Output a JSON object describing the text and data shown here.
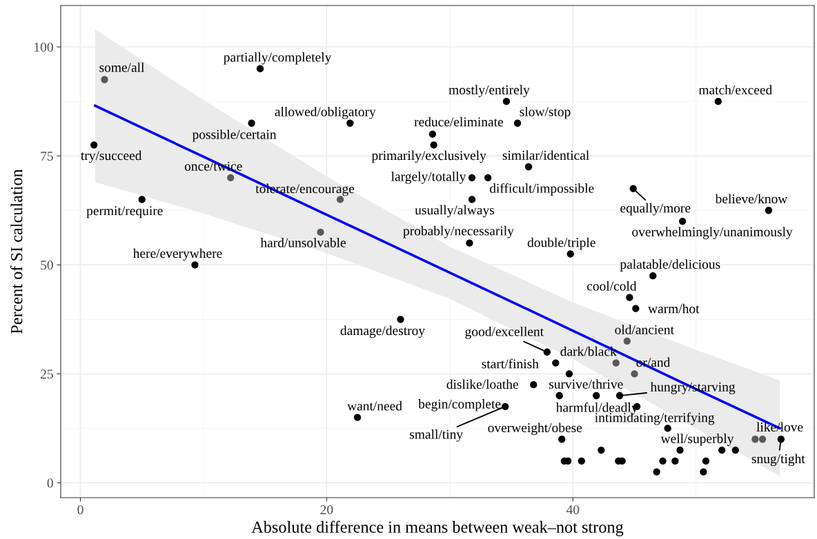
{
  "chart_data": {
    "type": "scatter",
    "xlabel": "Absolute difference in means between weak–not strong",
    "ylabel": "Percent of SI calculation",
    "xlim": [
      -1.6,
      59.6
    ],
    "ylim": [
      -3.4,
      109.5
    ],
    "xticks": [
      0,
      20,
      40
    ],
    "yticks": [
      0,
      25,
      50,
      75,
      100
    ],
    "grid": true,
    "series": [
      {
        "type": "scatter",
        "marker": "circle",
        "x": [
          1.96,
          14.6,
          13.9,
          21.9,
          1.1,
          12.2,
          5.0,
          21.1,
          19.5,
          9.3,
          34.6,
          35.5,
          28.6,
          28.7,
          36.4,
          31.8,
          33.1,
          31.8,
          31.6,
          39.8,
          44.9,
          51.8,
          55.9,
          48.9,
          46.5,
          44.6,
          45.1,
          26.0,
          44.4,
          37.9,
          43.5,
          38.6,
          45.0,
          39.7,
          36.8,
          38.9,
          41.9,
          43.8,
          45.2,
          34.5,
          47.7,
          39.1,
          48.7,
          54.8,
          55.4,
          56.9,
          42.3,
          52.1,
          53.2,
          39.3,
          39.6,
          40.7,
          43.7,
          44.0,
          47.3,
          48.3,
          50.8,
          46.8,
          50.6,
          22.5
        ],
        "values": [
          92.5,
          95,
          82.5,
          82.5,
          77.5,
          70,
          65,
          65,
          57.5,
          50,
          87.5,
          82.5,
          80,
          77.5,
          72.5,
          70,
          70,
          65,
          55,
          52.5,
          67.5,
          87.5,
          62.5,
          60,
          47.5,
          42.5,
          40,
          37.5,
          32.5,
          30,
          27.5,
          27.5,
          25,
          25,
          22.5,
          20,
          20,
          20,
          17.5,
          17.5,
          12.5,
          10,
          7.5,
          10,
          10,
          10,
          7.5,
          7.5,
          7.5,
          5,
          5,
          5,
          5,
          5,
          5,
          5,
          5,
          2.5,
          2.5,
          15
        ],
        "colors": [
          "#595959",
          "#000000",
          "#000000",
          "#000000",
          "#000000",
          "#595959",
          "#000000",
          "#595959",
          "#595959",
          "#000000",
          "#000000",
          "#000000",
          "#000000",
          "#000000",
          "#000000",
          "#000000",
          "#000000",
          "#000000",
          "#000000",
          "#000000",
          "#000000",
          "#000000",
          "#000000",
          "#000000",
          "#000000",
          "#000000",
          "#000000",
          "#000000",
          "#595959",
          "#000000",
          "#595959",
          "#000000",
          "#595959",
          "#000000",
          "#000000",
          "#000000",
          "#000000",
          "#000000",
          "#000000",
          "#000000",
          "#000000",
          "#000000",
          "#000000",
          "#595959",
          "#595959",
          "#000000",
          "#000000",
          "#000000",
          "#000000",
          "#000000",
          "#000000",
          "#000000",
          "#000000",
          "#000000",
          "#000000",
          "#000000",
          "#000000",
          "#000000",
          "#000000",
          "#000000"
        ]
      },
      {
        "type": "line",
        "color": "#0000ff",
        "x": [
          1.2,
          10,
          20,
          30,
          40,
          50,
          56.8
        ],
        "values": [
          86.5,
          74.8,
          61.5,
          48.2,
          34.9,
          21.5,
          12.5
        ],
        "lower": [
          69,
          61.8,
          52.7,
          42.2,
          28.4,
          12.5,
          1.5
        ],
        "upper": [
          104,
          87.8,
          70.3,
          54.2,
          41.4,
          30.5,
          23.5
        ]
      }
    ],
    "annotations": [
      {
        "text": "some/all",
        "x": 1.96,
        "y": 92.5
      },
      {
        "text": "partially/completely",
        "x": 14.6,
        "y": 95
      },
      {
        "text": "possible/certain",
        "x": 13.9,
        "y": 82.5
      },
      {
        "text": "allowed/obligatory",
        "x": 21.9,
        "y": 82.5
      },
      {
        "text": "try/succeed",
        "x": 1.1,
        "y": 77.5
      },
      {
        "text": "once/twice",
        "x": 12.2,
        "y": 70
      },
      {
        "text": "permit/require",
        "x": 5.0,
        "y": 65
      },
      {
        "text": "tolerate/encourage",
        "x": 21.1,
        "y": 65
      },
      {
        "text": "hard/unsolvable",
        "x": 19.5,
        "y": 57.5
      },
      {
        "text": "here/everywhere",
        "x": 9.3,
        "y": 50
      },
      {
        "text": "mostly/entirely",
        "x": 34.6,
        "y": 87.5
      },
      {
        "text": "slow/stop",
        "x": 35.5,
        "y": 82.5
      },
      {
        "text": "reduce/eliminate",
        "x": 28.6,
        "y": 80
      },
      {
        "text": "primarily/exclusively",
        "x": 28.7,
        "y": 77.5
      },
      {
        "text": "similar/identical",
        "x": 36.4,
        "y": 72.5
      },
      {
        "text": "largely/totally",
        "x": 31.8,
        "y": 70
      },
      {
        "text": "difficult/impossible",
        "x": 33.1,
        "y": 70
      },
      {
        "text": "usually/always",
        "x": 31.8,
        "y": 65
      },
      {
        "text": "probably/necessarily",
        "x": 31.6,
        "y": 55
      },
      {
        "text": "double/triple",
        "x": 39.8,
        "y": 52.5
      },
      {
        "text": "equally/more",
        "x": 44.9,
        "y": 67.5
      },
      {
        "text": "match/exceed",
        "x": 51.8,
        "y": 87.5
      },
      {
        "text": "believe/know",
        "x": 55.9,
        "y": 62.5
      },
      {
        "text": "overwhelmingly/unanimously",
        "x": 48.9,
        "y": 60
      },
      {
        "text": "palatable/delicious",
        "x": 46.5,
        "y": 47.5
      },
      {
        "text": "cool/cold",
        "x": 44.6,
        "y": 42.5
      },
      {
        "text": "warm/hot",
        "x": 45.1,
        "y": 40
      },
      {
        "text": "damage/destroy",
        "x": 26.0,
        "y": 37.5
      },
      {
        "text": "old/ancient",
        "x": 44.4,
        "y": 32.5
      },
      {
        "text": "good/excellent",
        "x": 37.9,
        "y": 30
      },
      {
        "text": "dark/black",
        "x": 43.5,
        "y": 27.5
      },
      {
        "text": "start/finish",
        "x": 38.6,
        "y": 27.5
      },
      {
        "text": "or/and",
        "x": 45.0,
        "y": 25
      },
      {
        "text": "dislike/loathe",
        "x": 36.8,
        "y": 22.5
      },
      {
        "text": "survive/thrive",
        "x": 41.9,
        "y": 20
      },
      {
        "text": "hungry/starving",
        "x": 43.8,
        "y": 20
      },
      {
        "text": "harmful/deadly",
        "x": 45.2,
        "y": 17.5
      },
      {
        "text": "begin/complete",
        "x": 34.5,
        "y": 17.5
      },
      {
        "text": "small/tiny",
        "x": 34.5,
        "y": 17.5
      },
      {
        "text": "intimidating/terrifying",
        "x": 47.7,
        "y": 12.5
      },
      {
        "text": "overweight/obese",
        "x": 39.1,
        "y": 10
      },
      {
        "text": "well/superbly",
        "x": 48.7,
        "y": 7.5
      },
      {
        "text": "like/love",
        "x": 55.4,
        "y": 10
      },
      {
        "text": "snug/tight",
        "x": 56.9,
        "y": 10
      },
      {
        "text": "want/need",
        "x": 22.5,
        "y": 15
      }
    ]
  }
}
